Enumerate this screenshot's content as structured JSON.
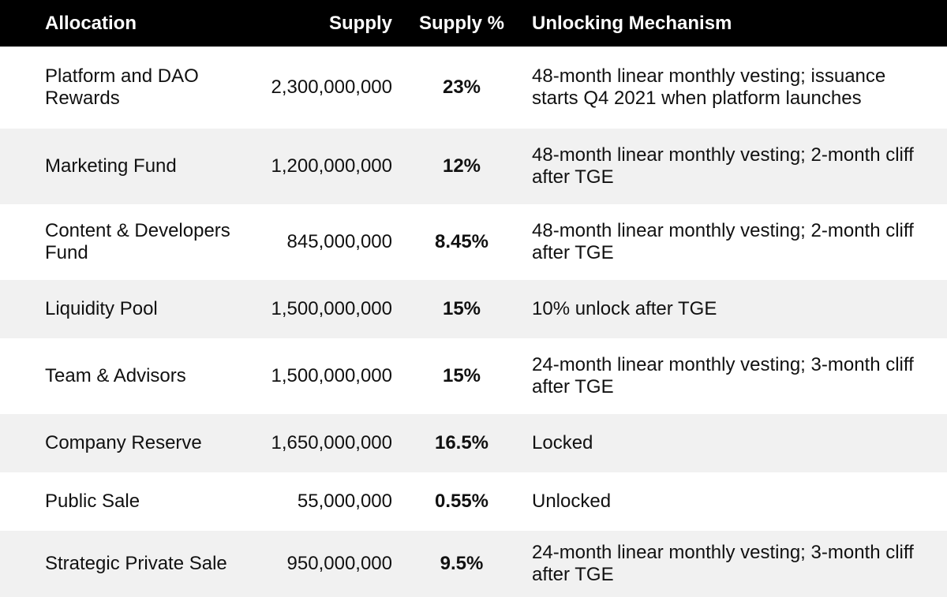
{
  "headers": {
    "allocation": "Allocation",
    "supply": "Supply",
    "supply_pct": "Supply %",
    "mechanism": "Unlocking Mechanism"
  },
  "rows": [
    {
      "allocation": "Platform and DAO Rewards",
      "supply": "2,300,000,000",
      "pct": "23%",
      "mechanism": "48-month linear monthly vesting; issuance starts Q4 2021 when platform launches"
    },
    {
      "allocation": "Marketing Fund",
      "supply": "1,200,000,000",
      "pct": "12%",
      "mechanism": "48-month linear monthly vesting; 2-month cliff after TGE"
    },
    {
      "allocation": "Content & Developers Fund",
      "supply": "845,000,000",
      "pct": "8.45%",
      "mechanism": "48-month linear monthly vesting; 2-month cliff after TGE"
    },
    {
      "allocation": "Liquidity Pool",
      "supply": "1,500,000,000",
      "pct": "15%",
      "mechanism": "10% unlock after TGE"
    },
    {
      "allocation": "Team & Advisors",
      "supply": "1,500,000,000",
      "pct": "15%",
      "mechanism": "24-month linear monthly vesting; 3-month cliff after TGE"
    },
    {
      "allocation": "Company Reserve",
      "supply": "1,650,000,000",
      "pct": "16.5%",
      "mechanism": "Locked"
    },
    {
      "allocation": "Public Sale",
      "supply": "55,000,000",
      "pct": "0.55%",
      "mechanism": "Unlocked"
    },
    {
      "allocation": "Strategic Private Sale",
      "supply": "950,000,000",
      "pct": "9.5%",
      "mechanism": "24-month linear monthly vesting; 3-month cliff after TGE"
    }
  ]
}
